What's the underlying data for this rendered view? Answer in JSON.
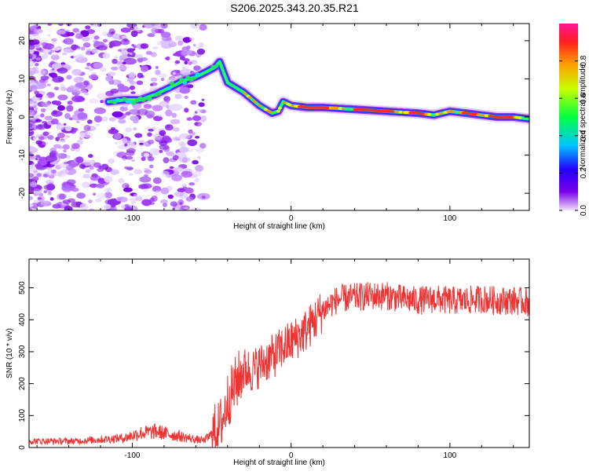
{
  "title": "S206.2025.343.20.35.R21",
  "chart_data": [
    {
      "type": "heatmap",
      "title": "S206.2025.343.20.35.R21",
      "xlabel": "Height of straight line (km)",
      "ylabel": "Frequency (Hz)",
      "xlim": [
        -165,
        150
      ],
      "ylim": [
        -24.5,
        24.5
      ],
      "xticks": [
        -100,
        0,
        100
      ],
      "xtick_labels": [
        "-100",
        "0",
        "100"
      ],
      "yticks": [
        -20,
        -10,
        0,
        10,
        20
      ],
      "ytick_labels": [
        "-20",
        "-10",
        "0",
        "10",
        "20"
      ],
      "colorbar": {
        "label": "Normalized spectral amplitude",
        "range": [
          0,
          1
        ],
        "ticks": [
          0.0,
          0.2,
          0.4,
          0.6,
          0.8
        ],
        "tick_labels": [
          "0.0",
          "0.2",
          "0.4",
          "0.6",
          "0.8"
        ]
      },
      "ridge": {
        "x": [
          -115,
          -105,
          -95,
          -85,
          -75,
          -68,
          -60,
          -55,
          -48,
          -45,
          -40,
          -30,
          -20,
          -12,
          -8,
          -5,
          0,
          10,
          20,
          40,
          60,
          80,
          90,
          100,
          110,
          120,
          130,
          140,
          150
        ],
        "y": [
          4.0,
          4.5,
          4.5,
          6.0,
          8.0,
          9.5,
          10.5,
          11.5,
          13.0,
          14.5,
          9.0,
          6.5,
          3.0,
          1.0,
          1.5,
          4.0,
          3.0,
          2.5,
          2.5,
          2.0,
          1.5,
          1.0,
          0.5,
          1.5,
          1.0,
          0.5,
          0.0,
          0.0,
          -0.5
        ]
      }
    },
    {
      "type": "line",
      "xlabel": "Height of straight line (km)",
      "ylabel": "SNR (10 * v/v)",
      "xlim": [
        -165,
        150
      ],
      "ylim": [
        0,
        590
      ],
      "xticks": [
        -100,
        0,
        100
      ],
      "xtick_labels": [
        "-100",
        "0",
        "100"
      ],
      "yticks": [
        0,
        100,
        200,
        300,
        400,
        500
      ],
      "ytick_labels": [
        "0",
        "100",
        "200",
        "300",
        "400",
        "500"
      ],
      "series": [
        {
          "name": "SNR",
          "color": "#ee3333",
          "x": [
            -165,
            -150,
            -135,
            -120,
            -105,
            -95,
            -85,
            -80,
            -75,
            -70,
            -65,
            -60,
            -55,
            -50,
            -45,
            -42,
            -40,
            -37,
            -35,
            -32,
            -30,
            -25,
            -20,
            -15,
            -10,
            -5,
            0,
            5,
            10,
            15,
            20,
            25,
            30,
            40,
            50,
            60,
            70,
            80,
            90,
            100,
            110,
            120,
            130,
            140,
            150
          ],
          "y": [
            20,
            20,
            20,
            25,
            30,
            45,
            50,
            45,
            40,
            35,
            30,
            25,
            22,
            40,
            65,
            105,
            150,
            175,
            200,
            225,
            245,
            240,
            255,
            275,
            290,
            315,
            330,
            350,
            370,
            400,
            430,
            450,
            465,
            470,
            475,
            475,
            465,
            460,
            465,
            460,
            460,
            465,
            460,
            460,
            455
          ]
        }
      ]
    }
  ]
}
